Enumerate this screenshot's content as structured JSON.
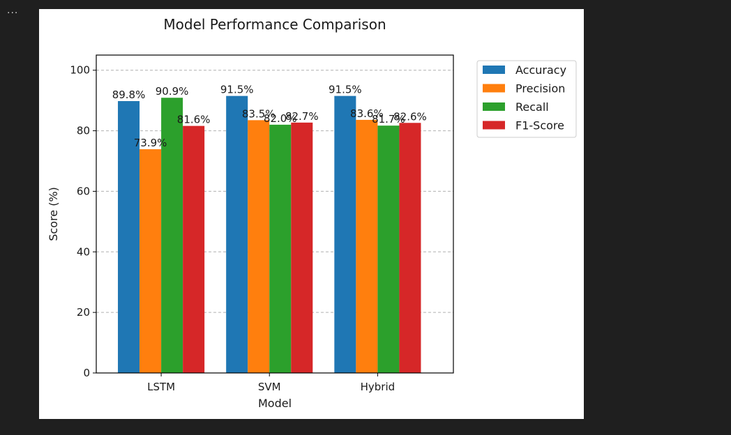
{
  "toolbar": {
    "more_label": "···"
  },
  "chart_data": {
    "type": "bar",
    "title": "Model Performance Comparison",
    "xlabel": "Model",
    "ylabel": "Score (%)",
    "categories": [
      "LSTM",
      "SVM",
      "Hybrid"
    ],
    "series": [
      {
        "name": "Accuracy",
        "color": "#1f77b4",
        "values": [
          89.8,
          91.5,
          91.5
        ],
        "labels": [
          "89.8%",
          "91.5%",
          "91.5%"
        ]
      },
      {
        "name": "Precision",
        "color": "#ff7f0e",
        "values": [
          73.9,
          83.5,
          83.6
        ],
        "labels": [
          "73.9%",
          "83.5%",
          "83.6%"
        ]
      },
      {
        "name": "Recall",
        "color": "#2ca02c",
        "values": [
          90.9,
          82.0,
          81.7
        ],
        "labels": [
          "90.9%",
          "82.0%",
          "81.7%"
        ]
      },
      {
        "name": "F1-Score",
        "color": "#d62728",
        "values": [
          81.6,
          82.7,
          82.6
        ],
        "labels": [
          "81.6%",
          "82.7%",
          "82.6%"
        ]
      }
    ],
    "ylim": [
      0,
      105
    ],
    "yticks": [
      0,
      20,
      40,
      60,
      80,
      100
    ],
    "ytick_labels": [
      "0",
      "20",
      "40",
      "60",
      "80",
      "100"
    ],
    "grid": "y-dashed",
    "legend_position": "outside-upper-right"
  }
}
